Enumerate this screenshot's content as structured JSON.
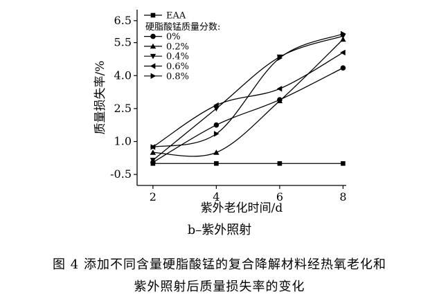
{
  "chart_data": {
    "type": "line",
    "x": [
      2,
      4,
      6,
      8
    ],
    "xlabel": "紫外老化时间/d",
    "ylabel": "质量损失率/%",
    "xlim": [
      1.5,
      8.1
    ],
    "ylim": [
      -1.0,
      7.0
    ],
    "xticks": [
      2,
      4,
      6,
      8
    ],
    "yticks": [
      -0.5,
      1.0,
      2.5,
      4.0,
      5.5,
      6.5
    ],
    "ytick_labels": [
      "-0.5",
      "1.0",
      "2.5",
      "4.0",
      "5.5",
      "6.5"
    ],
    "legend_title": "硬脂酸锰质量分数:",
    "legend_position": "top-left",
    "series": [
      {
        "name": "EAA",
        "marker": "square",
        "values": [
          0.0,
          0.0,
          0.0,
          0.0
        ]
      },
      {
        "name": "0%",
        "marker": "circle",
        "values": [
          0.05,
          1.75,
          2.9,
          4.35
        ]
      },
      {
        "name": "0.2%",
        "marker": "triangle-up",
        "values": [
          0.5,
          0.5,
          2.85,
          5.65
        ]
      },
      {
        "name": "0.4%",
        "marker": "triangle-down",
        "values": [
          0.15,
          2.5,
          4.85,
          5.8
        ]
      },
      {
        "name": "0.6%",
        "marker": "triangle-left",
        "values": [
          0.75,
          2.65,
          3.4,
          5.05
        ]
      },
      {
        "name": "0.8%",
        "marker": "triangle-right",
        "values": [
          0.75,
          1.35,
          4.8,
          5.9
        ]
      }
    ]
  },
  "captions": {
    "subcaption": "b–紫外照射",
    "figure_caption_line1": "图 4   添加不同含量硬脂酸锰的复合降解材料经热氧老化和",
    "figure_caption_line2": "紫外照射后质量损失率的变化"
  }
}
